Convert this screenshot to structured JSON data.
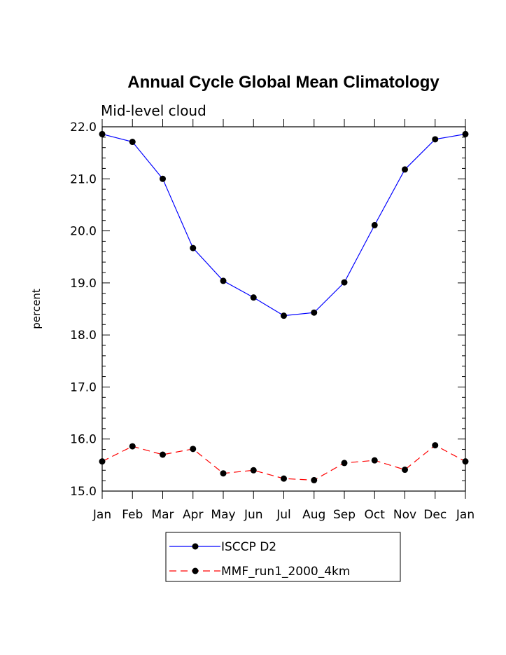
{
  "chart_data": {
    "type": "line",
    "title": "Annual Cycle Global Mean Climatology",
    "subtitle": "Mid-level cloud",
    "xlabel": "",
    "ylabel": "percent",
    "categories": [
      "Jan",
      "Feb",
      "Mar",
      "Apr",
      "May",
      "Jun",
      "Jul",
      "Aug",
      "Sep",
      "Oct",
      "Nov",
      "Dec",
      "Jan"
    ],
    "ylim": [
      15.0,
      22.0
    ],
    "yticks": [
      "15.0",
      "16.0",
      "17.0",
      "18.0",
      "19.0",
      "20.0",
      "21.0",
      "22.0"
    ],
    "series": [
      {
        "name": "ISCCP D2",
        "color": "#0000ff",
        "dash": "solid",
        "values": [
          21.86,
          21.71,
          21.0,
          19.67,
          19.04,
          18.72,
          18.37,
          18.43,
          19.01,
          20.11,
          21.18,
          21.76,
          21.86
        ]
      },
      {
        "name": "MMF_run1_2000_4km",
        "color": "#ff0000",
        "dash": "dashed",
        "values": [
          15.57,
          15.86,
          15.7,
          15.81,
          15.34,
          15.4,
          15.24,
          15.21,
          15.54,
          15.59,
          15.41,
          15.88,
          15.57
        ]
      }
    ],
    "grid": false,
    "legend_position": "bottom-center"
  }
}
